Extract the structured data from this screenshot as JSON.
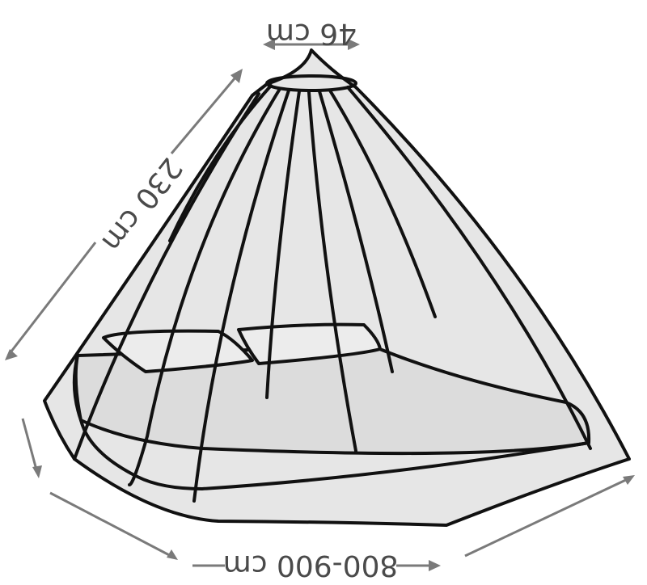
{
  "dimensions": {
    "top_diameter": "46 cm",
    "height": "230 cm",
    "circumference": "800-900 cm"
  },
  "colors": {
    "ink": "#111111",
    "net_fill": "#e6e6e6",
    "dimension_gray": "#4a4a4a"
  }
}
